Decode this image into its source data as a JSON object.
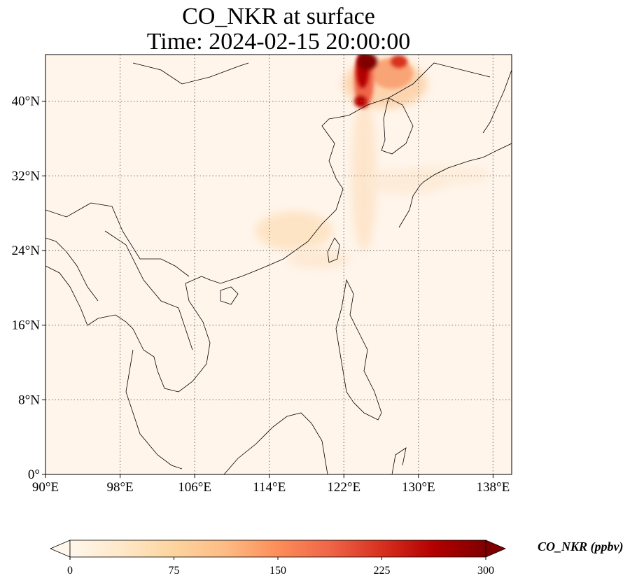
{
  "title": {
    "line1": "CO_NKR at surface",
    "line2": "Time: 2024-02-15 20:00:00"
  },
  "map": {
    "lon_range": [
      90,
      140
    ],
    "lat_range": [
      0,
      45
    ],
    "x_ticks": [
      {
        "value": 90,
        "label": "90°E"
      },
      {
        "value": 98,
        "label": "98°E"
      },
      {
        "value": 106,
        "label": "106°E"
      },
      {
        "value": 114,
        "label": "114°E"
      },
      {
        "value": 122,
        "label": "122°E"
      },
      {
        "value": 130,
        "label": "130°E"
      },
      {
        "value": 138,
        "label": "138°E"
      }
    ],
    "y_ticks": [
      {
        "value": 0,
        "label": "0°"
      },
      {
        "value": 8,
        "label": "8°N"
      },
      {
        "value": 16,
        "label": "16°N"
      },
      {
        "value": 24,
        "label": "24°N"
      },
      {
        "value": 32,
        "label": "32°N"
      },
      {
        "value": 40,
        "label": "40°N"
      }
    ],
    "gridlines": "dotted",
    "colors": {
      "background": "#fff5eb",
      "coastline": "#000000",
      "grid": "#7f7f7f"
    }
  },
  "colorbar": {
    "label": "CO_NKR (ppbv)",
    "min": 0,
    "max": 300,
    "extend": "both",
    "ticks": [
      {
        "value": 0,
        "label": "0"
      },
      {
        "value": 75,
        "label": "75"
      },
      {
        "value": 150,
        "label": "150"
      },
      {
        "value": 225,
        "label": "225"
      },
      {
        "value": 300,
        "label": "300"
      }
    ],
    "colormap": "OrRd",
    "colormap_stops": [
      "#fff7ec",
      "#fee8c8",
      "#fdd49e",
      "#fdbb84",
      "#fc8d59",
      "#ef6548",
      "#d7301f",
      "#b30000",
      "#7f0000"
    ],
    "under_color": "#fff7ec",
    "over_color": "#7f0000"
  }
}
